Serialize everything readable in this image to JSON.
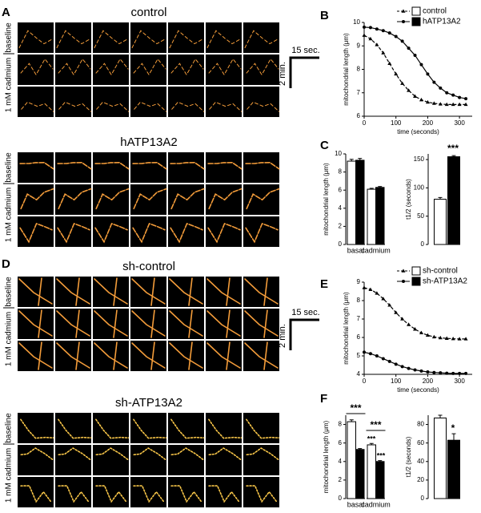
{
  "figure": {
    "panel_letters": [
      "A",
      "B",
      "C",
      "D",
      "E",
      "F"
    ],
    "image_groups": [
      {
        "title": "control"
      },
      {
        "title": "hATP13A2"
      },
      {
        "title": "sh-control"
      },
      {
        "title": "sh-ATP13A2"
      }
    ],
    "row_labels": [
      "baseline",
      "1 mM cadmium"
    ],
    "scale_bar": {
      "time": "15 sec.",
      "length": "2 min."
    }
  },
  "chart_data": [
    {
      "type": "line",
      "xlabel": "time (seconds)",
      "ylabel": "mitochondrial length (μm)",
      "x": [
        0,
        20,
        40,
        60,
        80,
        100,
        120,
        140,
        160,
        180,
        200,
        220,
        240,
        260,
        280,
        300,
        320
      ],
      "series": [
        {
          "name": "control",
          "color": "#ffffff",
          "marker": "triangle",
          "dashed": true,
          "values": [
            9.45,
            9.3,
            9.05,
            8.7,
            8.25,
            7.8,
            7.4,
            7.1,
            6.85,
            6.7,
            6.6,
            6.55,
            6.52,
            6.5,
            6.5,
            6.5,
            6.5
          ]
        },
        {
          "name": "hATP13A2",
          "color": "#000000",
          "marker": "circle",
          "dashed": false,
          "values": [
            9.8,
            9.78,
            9.72,
            9.65,
            9.55,
            9.4,
            9.2,
            8.9,
            8.6,
            8.2,
            7.8,
            7.45,
            7.2,
            7.0,
            6.9,
            6.8,
            6.75
          ]
        }
      ],
      "xlim": [
        0,
        340
      ],
      "xticks": [
        0,
        100,
        200,
        300
      ],
      "ylim": [
        6,
        10
      ],
      "yticks": [
        6,
        7,
        8,
        9,
        10
      ]
    },
    {
      "type": "bar",
      "ylabel": "mitochondrial length (μm)",
      "categories": [
        "basal",
        "cadmium"
      ],
      "series": [
        {
          "color": "#ffffff",
          "values": [
            9.2,
            6.1
          ],
          "errors": [
            0.2,
            0.1
          ]
        },
        {
          "color": "#000000",
          "values": [
            9.3,
            6.3
          ],
          "errors": [
            0.2,
            0.1
          ]
        }
      ],
      "ylim": [
        0,
        10
      ],
      "yticks": [
        0,
        2,
        4,
        6,
        8,
        10
      ],
      "annotations": []
    },
    {
      "type": "bar",
      "ylabel": "t1/2 (seconds)",
      "categories": [
        null
      ],
      "series": [
        {
          "color": "#ffffff",
          "values": [
            80
          ],
          "errors": [
            3
          ]
        },
        {
          "color": "#000000",
          "values": [
            155
          ],
          "errors": [
            2
          ]
        }
      ],
      "ylim": [
        0,
        160
      ],
      "yticks": [
        0,
        50,
        100,
        150
      ],
      "annotations": [
        "***"
      ]
    },
    {
      "type": "line",
      "xlabel": "time (seconds)",
      "ylabel": "mitochondrial length (μm)",
      "x": [
        0,
        20,
        40,
        60,
        80,
        100,
        120,
        140,
        160,
        180,
        200,
        220,
        240,
        260,
        280,
        300,
        320
      ],
      "series": [
        {
          "name": "sh-control",
          "color": "#ffffff",
          "marker": "triangle",
          "dashed": true,
          "values": [
            8.7,
            8.6,
            8.4,
            8.1,
            7.75,
            7.35,
            7.0,
            6.7,
            6.45,
            6.25,
            6.12,
            6.03,
            5.98,
            5.95,
            5.93,
            5.92,
            5.92
          ]
        },
        {
          "name": "sh-ATP13A2",
          "color": "#000000",
          "marker": "circle",
          "dashed": false,
          "values": [
            5.2,
            5.12,
            5.0,
            4.85,
            4.7,
            4.55,
            4.42,
            4.32,
            4.24,
            4.18,
            4.13,
            4.1,
            4.08,
            4.06,
            4.05,
            4.05,
            4.05
          ]
        }
      ],
      "xlim": [
        0,
        340
      ],
      "xticks": [
        0,
        100,
        200,
        300
      ],
      "ylim": [
        4,
        9
      ],
      "yticks": [
        4,
        5,
        6,
        7,
        8,
        9
      ]
    },
    {
      "type": "bar",
      "ylabel": "mitochondrial length (μm)",
      "categories": [
        "basal",
        "cadmium"
      ],
      "series": [
        {
          "color": "#ffffff",
          "values": [
            8.3,
            5.8
          ],
          "errors": [
            0.2,
            0.15
          ]
        },
        {
          "color": "#000000",
          "values": [
            5.3,
            4.0
          ],
          "errors": [
            0.1,
            0.1
          ]
        }
      ],
      "ylim": [
        0,
        9
      ],
      "yticks": [
        0,
        2,
        4,
        6,
        8
      ],
      "annotations": [
        "***",
        "***",
        "***",
        "***"
      ]
    },
    {
      "type": "bar",
      "ylabel": "t1/2 (seconds)",
      "categories": [
        null
      ],
      "series": [
        {
          "color": "#ffffff",
          "values": [
            87
          ],
          "errors": [
            3
          ]
        },
        {
          "color": "#000000",
          "values": [
            63
          ],
          "errors": [
            7
          ]
        }
      ],
      "ylim": [
        0,
        90
      ],
      "yticks": [
        0,
        20,
        40,
        60,
        80
      ],
      "annotations": [
        "*"
      ]
    }
  ]
}
